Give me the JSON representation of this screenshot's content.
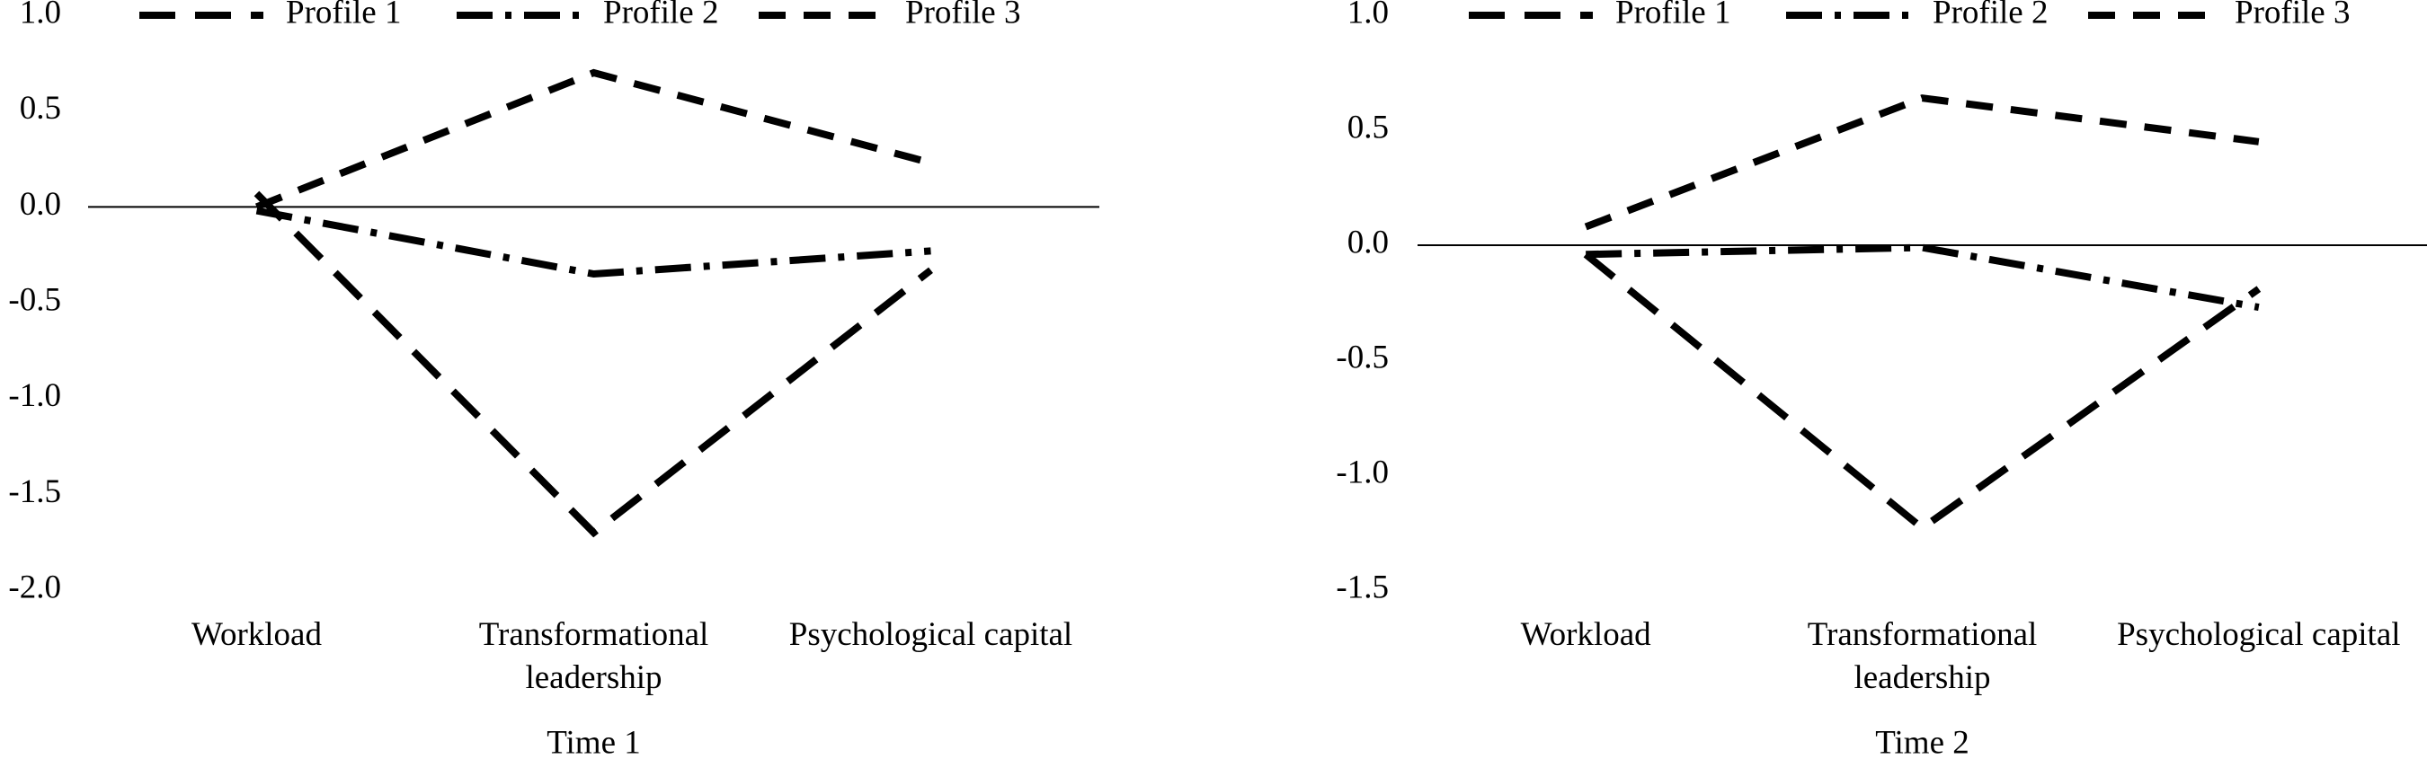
{
  "chart_data": [
    {
      "type": "line",
      "x_label": "Time 1",
      "categories": [
        "Workload",
        "Transformational leadership",
        "Psychological capital"
      ],
      "ylim": [
        -2.0,
        1.0
      ],
      "yticks": [
        {
          "value": 1.0,
          "label": "1.0"
        },
        0.5,
        {
          "value": 0.0,
          "label": "0.0"
        },
        -0.5,
        {
          "value": -1.0,
          "label": "-1.0"
        },
        -1.5,
        {
          "value": -2.0,
          "label": "-2.0"
        }
      ],
      "grid": false,
      "series": [
        {
          "name": "Profile 1",
          "color": "#000000",
          "dash": "long-dash",
          "values": [
            0.07,
            -1.7,
            -0.33
          ]
        },
        {
          "name": "Profile 2",
          "color": "#000000",
          "dash": "dash-dot",
          "values": [
            -0.02,
            -0.35,
            -0.23
          ]
        },
        {
          "name": "Profile 3",
          "color": "#000000",
          "dash": "dash",
          "values": [
            0.0,
            0.7,
            0.23
          ]
        }
      ]
    },
    {
      "type": "line",
      "x_label": "Time 2",
      "categories": [
        "Workload",
        "Transformational leadership",
        "Psychological capital"
      ],
      "ylim": [
        -1.5,
        1.0
      ],
      "yticks": [
        {
          "value": 1.0,
          "label": "1.0"
        },
        0.5,
        {
          "value": 0.0,
          "label": "0.0"
        },
        -0.5,
        {
          "value": -1.0,
          "label": "-1.0"
        },
        -1.5
      ],
      "grid": false,
      "series": [
        {
          "name": "Profile 1",
          "color": "#000000",
          "dash": "long-dash",
          "values": [
            -0.04,
            -1.23,
            -0.19
          ]
        },
        {
          "name": "Profile 2",
          "color": "#000000",
          "dash": "dash-dot",
          "values": [
            -0.04,
            -0.01,
            -0.27
          ]
        },
        {
          "name": "Profile 3",
          "color": "#000000",
          "dash": "dash",
          "values": [
            0.08,
            0.64,
            0.45
          ]
        }
      ]
    }
  ]
}
